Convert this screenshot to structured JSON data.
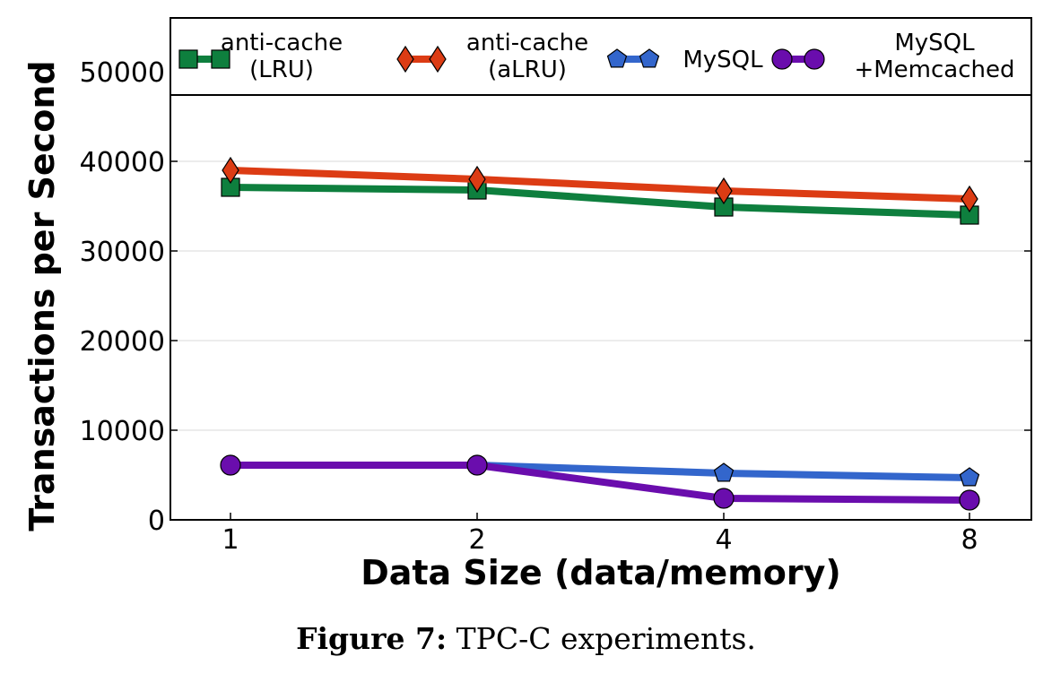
{
  "chart_data": {
    "type": "line",
    "xlabel": "Data Size (data/memory)",
    "ylabel": "Transactions per Second",
    "categories": [
      "1",
      "2",
      "4",
      "8"
    ],
    "ylim": [
      0,
      56000
    ],
    "yticks": [
      "0",
      "10000",
      "20000",
      "30000",
      "40000",
      "50000"
    ],
    "grid": "horizontal",
    "legend": "top",
    "series": [
      {
        "name": "anti-cache\n(LRU)",
        "label_lines": [
          "anti-cache",
          "(LRU)"
        ],
        "values": [
          37100,
          36800,
          34900,
          34000
        ],
        "color": "#0e7f3e",
        "marker": "square"
      },
      {
        "name": "anti-cache\n(aLRU)",
        "label_lines": [
          "anti-cache",
          "(aLRU)"
        ],
        "values": [
          39000,
          38000,
          36700,
          35800
        ],
        "color": "#dc3c14",
        "marker": "diamond"
      },
      {
        "name": "MySQL",
        "label_lines": [
          "MySQL"
        ],
        "values": [
          6100,
          6100,
          5200,
          4700
        ],
        "color": "#3366cc",
        "marker": "pentagon"
      },
      {
        "name": "MySQL\n+Memcached",
        "label_lines": [
          "MySQL",
          "+Memcached"
        ],
        "values": [
          6100,
          6100,
          2400,
          2200
        ],
        "color": "#6a0dad",
        "marker": "circle"
      }
    ]
  },
  "caption": {
    "label": "Figure 7:",
    "text": "TPC-C experiments."
  }
}
